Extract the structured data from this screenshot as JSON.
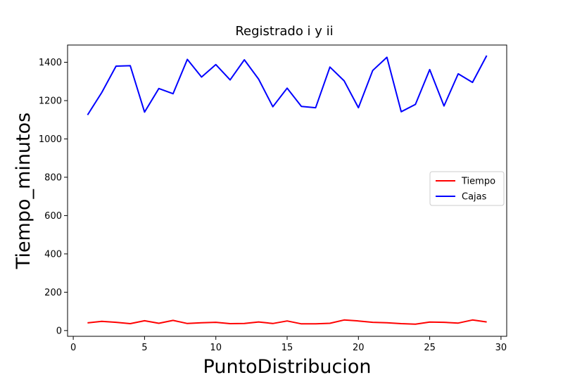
{
  "chart_data": {
    "type": "line",
    "title": "Registrado i y ii",
    "xlabel": "PuntoDistribucion",
    "ylabel": "Tiempo_minutos",
    "xlim": [
      -0.4,
      30.4
    ],
    "ylim": [
      -30,
      1490
    ],
    "xticks": [
      0,
      5,
      10,
      15,
      20,
      25,
      30
    ],
    "yticks": [
      0,
      200,
      400,
      600,
      800,
      1000,
      1200,
      1400
    ],
    "grid": false,
    "legend_position": "center-right",
    "x": [
      1,
      2,
      3,
      4,
      5,
      6,
      7,
      8,
      9,
      10,
      11,
      12,
      13,
      14,
      15,
      16,
      17,
      18,
      19,
      20,
      21,
      22,
      23,
      24,
      25,
      26,
      27,
      28,
      29
    ],
    "series": [
      {
        "name": "Tiempo",
        "color": "#ff0000",
        "values": [
          40,
          48,
          43,
          36,
          51,
          38,
          53,
          37,
          41,
          43,
          36,
          37,
          45,
          37,
          50,
          35,
          35,
          38,
          55,
          50,
          43,
          41,
          36,
          33,
          44,
          43,
          39,
          55,
          45
        ]
      },
      {
        "name": "Cajas",
        "color": "#0000ff",
        "values": [
          1125,
          1242,
          1380,
          1382,
          1140,
          1263,
          1236,
          1415,
          1323,
          1388,
          1308,
          1413,
          1312,
          1168,
          1265,
          1170,
          1163,
          1375,
          1303,
          1163,
          1357,
          1426,
          1142,
          1180,
          1362,
          1172,
          1340,
          1295,
          1435
        ]
      }
    ]
  }
}
